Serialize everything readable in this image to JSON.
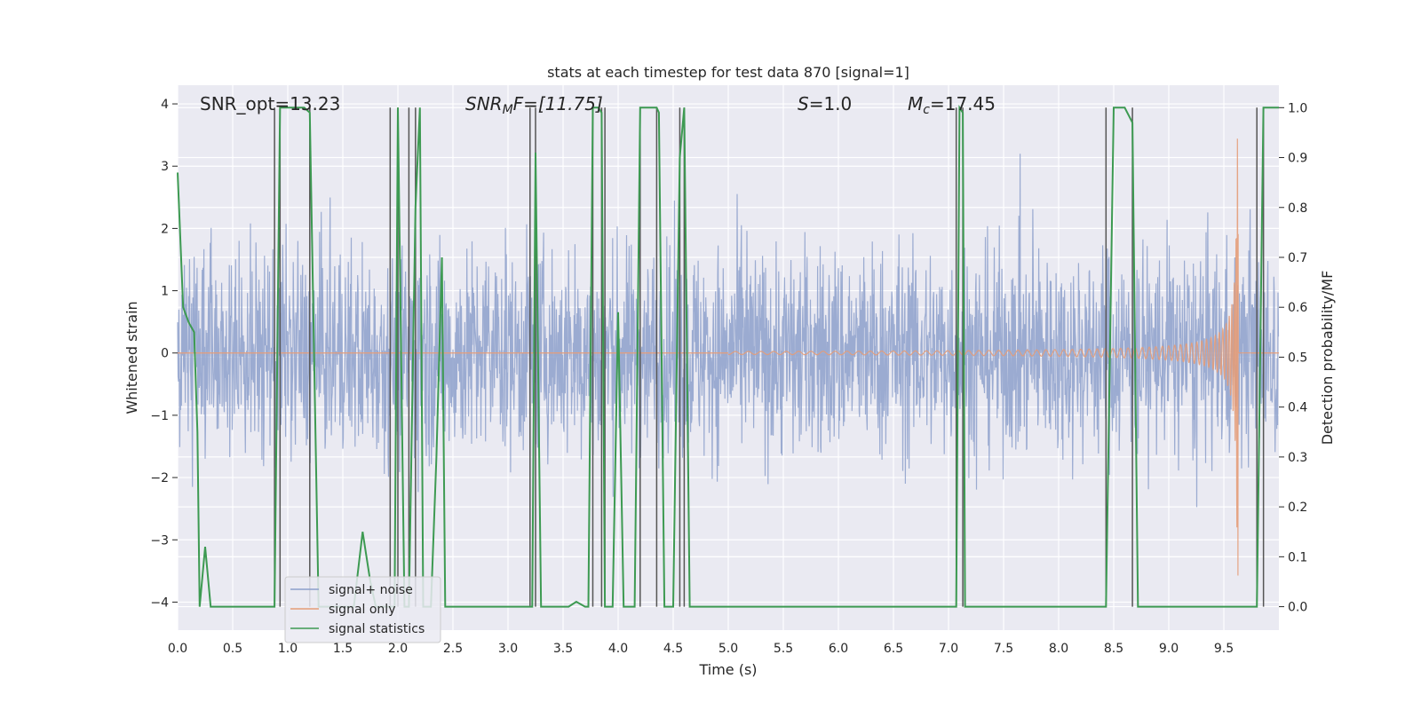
{
  "chart_data": {
    "type": "line",
    "title": "stats at each timestep for test data 870 [signal=1]",
    "xlabel": "Time (s)",
    "ylabel": "Whitened strain",
    "y2label": "Detection probability/MF",
    "xlim": [
      0,
      10
    ],
    "ylim": [
      -4.45,
      4.3
    ],
    "y2lim": [
      -0.047,
      1.045
    ],
    "x_ticks": [
      "0.0",
      "0.5",
      "1.0",
      "1.5",
      "2.0",
      "2.5",
      "3.0",
      "3.5",
      "4.0",
      "4.5",
      "5.0",
      "5.5",
      "6.0",
      "6.5",
      "7.0",
      "7.5",
      "8.0",
      "8.5",
      "9.0",
      "9.5"
    ],
    "y_ticks": [
      "4",
      "3",
      "2",
      "1",
      "0",
      "−1",
      "−2",
      "−3",
      "−4"
    ],
    "y2_ticks": [
      "1.0",
      "0.9",
      "0.8",
      "0.7",
      "0.6",
      "0.5",
      "0.4",
      "0.3",
      "0.2",
      "0.1",
      "0.0"
    ],
    "grid": true,
    "legend_position": "lower-left",
    "annotations": {
      "snr_opt": "SNR_opt=13.23",
      "snr_mf": "SNR",
      "snr_mf_sub": "M",
      "snr_mf_rest": "F=[11.75]",
      "s_val": "S",
      "s_rest": "=1.0",
      "mc": "M",
      "mc_sub": "c",
      "mc_rest": "=17.45"
    },
    "series": [
      {
        "name": "signal+ noise",
        "color": "#8da0cb",
        "description_values": "white noise, amplitude about ±2 with spikes up to about ±3"
      },
      {
        "name": "signal only",
        "color": "#e49c78",
        "chirp": {
          "start": 5.0,
          "end": 9.75,
          "peak_amplitude": 3.6,
          "merger": 9.63
        }
      },
      {
        "name": "signal statistics",
        "color": "#3d9a52",
        "axis": "right",
        "x": [
          0.0,
          0.05,
          0.1,
          0.15,
          0.18,
          0.2,
          0.25,
          0.3,
          0.6,
          0.7,
          0.88,
          0.93,
          1.0,
          1.15,
          1.2,
          1.28,
          1.6,
          1.68,
          1.75,
          1.8,
          1.93,
          1.97,
          2.0,
          2.03,
          2.06,
          2.1,
          2.13,
          2.16,
          2.2,
          2.23,
          2.3,
          2.35,
          2.4,
          2.43,
          2.5,
          3.2,
          3.22,
          3.25,
          3.3,
          3.55,
          3.62,
          3.7,
          3.73,
          3.77,
          3.82,
          3.85,
          3.88,
          3.92,
          3.95,
          4.0,
          4.05,
          4.1,
          4.15,
          4.2,
          4.35,
          4.37,
          4.42,
          4.47,
          4.5,
          4.56,
          4.6,
          4.65,
          5.0,
          6.0,
          7.0,
          7.07,
          7.1,
          7.13,
          7.15,
          7.2,
          8.0,
          8.43,
          8.5,
          8.6,
          8.67,
          8.72,
          9.0,
          9.5,
          9.6,
          9.65,
          9.8,
          9.86,
          9.9,
          10.0
        ],
        "y": [
          0.87,
          0.6,
          0.57,
          0.55,
          0.35,
          0.0,
          0.12,
          0.0,
          0.0,
          0.0,
          0.0,
          1.0,
          1.0,
          1.0,
          0.99,
          0.0,
          0.0,
          0.15,
          0.05,
          0.0,
          0.0,
          0.0,
          1.0,
          0.5,
          0.0,
          0.0,
          0.4,
          0.8,
          1.0,
          0.0,
          0.0,
          0.3,
          0.7,
          0.0,
          0.0,
          0.0,
          0.0,
          0.91,
          0.0,
          0.0,
          0.01,
          0.0,
          0.0,
          1.0,
          1.0,
          0.99,
          0.0,
          0.0,
          0.0,
          0.59,
          0.0,
          0.0,
          0.0,
          1.0,
          1.0,
          0.99,
          0.0,
          0.0,
          0.0,
          0.9,
          1.0,
          0.0,
          0.0,
          0.0,
          0.0,
          0.0,
          1.0,
          0.99,
          0.0,
          0.0,
          0.0,
          0.0,
          1.0,
          1.0,
          0.97,
          0.0,
          0.0,
          0.0,
          0.0,
          0.0,
          0.0,
          1.0,
          1.0,
          1.0
        ]
      }
    ],
    "vertical_lines_x": [
      0.88,
      0.93,
      1.2,
      1.93,
      2.0,
      2.1,
      2.16,
      3.2,
      3.25,
      3.77,
      3.85,
      3.88,
      4.2,
      4.35,
      4.56,
      4.6,
      7.07,
      7.13,
      8.43,
      8.67,
      9.8,
      9.86
    ]
  }
}
